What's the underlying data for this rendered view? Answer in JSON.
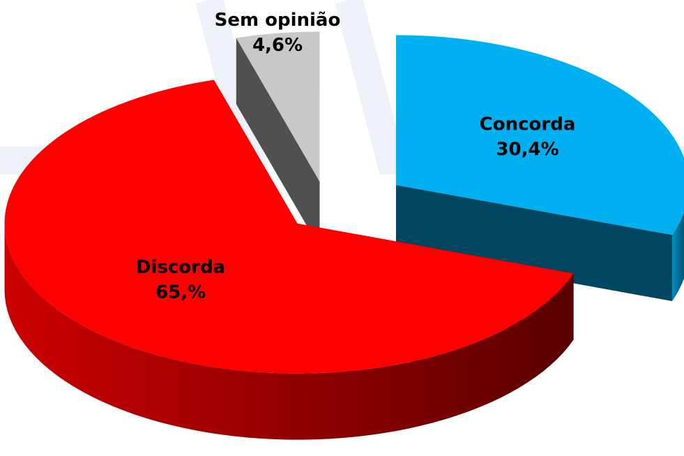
{
  "chart_data": {
    "type": "pie",
    "categories": [
      "Concorda",
      "Discorda",
      "Sem opinião"
    ],
    "values": [
      30.4,
      65,
      4.6
    ],
    "value_labels": [
      "30,4%",
      "65,%",
      "4,6%"
    ],
    "colors": [
      "#00b0f0",
      "#ff0000",
      "#c8c8c8"
    ]
  }
}
